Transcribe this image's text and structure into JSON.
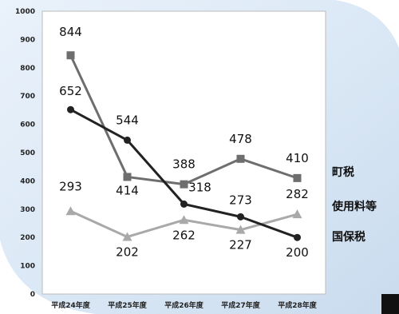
{
  "chart_data": {
    "type": "line",
    "categories": [
      "平成24年度",
      "平成25年度",
      "平成26年度",
      "平成27年度",
      "平成28年度"
    ],
    "ylim": [
      0,
      1000
    ],
    "yticks": [
      0,
      100,
      200,
      300,
      400,
      500,
      600,
      700,
      800,
      900,
      1000
    ],
    "grid": false,
    "legend_placement": "right",
    "series": [
      {
        "name": "町税",
        "marker": "square",
        "color": "#6e6e6e",
        "values": [
          844,
          414,
          388,
          478,
          410
        ]
      },
      {
        "name": "使用料等",
        "marker": "triangle",
        "color": "#a9a9a9",
        "values": [
          293,
          202,
          262,
          227,
          282
        ]
      },
      {
        "name": "国保税",
        "marker": "circle",
        "color": "#222222",
        "values": [
          652,
          544,
          318,
          273,
          200
        ]
      }
    ],
    "data_labels": [
      {
        "text": "844",
        "series": 0,
        "index": 0
      },
      {
        "text": "414",
        "series": 0,
        "index": 1
      },
      {
        "text": "388",
        "series": 0,
        "index": 2
      },
      {
        "text": "478",
        "series": 0,
        "index": 3
      },
      {
        "text": "410",
        "series": 0,
        "index": 4
      },
      {
        "text": "293",
        "series": 1,
        "index": 0
      },
      {
        "text": "202",
        "series": 1,
        "index": 1
      },
      {
        "text": "262",
        "series": 1,
        "index": 2
      },
      {
        "text": "227",
        "series": 1,
        "index": 3
      },
      {
        "text": "282",
        "series": 1,
        "index": 4
      },
      {
        "text": "652",
        "series": 2,
        "index": 0
      },
      {
        "text": "544",
        "series": 2,
        "index": 1
      },
      {
        "text": "318",
        "series": 2,
        "index": 2
      },
      {
        "text": "273",
        "series": 2,
        "index": 3
      },
      {
        "text": "200",
        "series": 2,
        "index": 4
      }
    ]
  }
}
